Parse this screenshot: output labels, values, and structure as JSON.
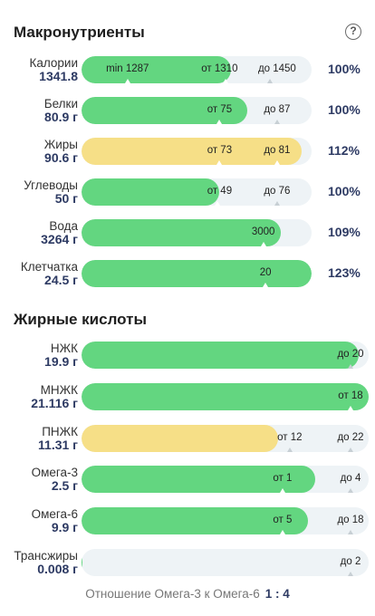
{
  "macros": {
    "title": "Макронутриенты",
    "help_icon": "question-circle-icon",
    "rows": [
      {
        "name": "Калории",
        "amount": "1341.8",
        "fill": 0.65,
        "color": "green",
        "marks": [
          {
            "text": "min 1287",
            "pos": 0.2,
            "tick": 0.2
          },
          {
            "text": "от 1310",
            "pos": 0.6,
            "tick": 0.625
          },
          {
            "text": "до 1450",
            "pos": 0.85,
            "tick": 0.82
          }
        ],
        "pct": "100%"
      },
      {
        "name": "Белки",
        "amount": "80.9 г",
        "fill": 0.72,
        "color": "green",
        "marks": [
          {
            "text": "от 75",
            "pos": 0.6,
            "tick": 0.6
          },
          {
            "text": "до 87",
            "pos": 0.85,
            "tick": 0.85
          }
        ],
        "pct": "100%"
      },
      {
        "name": "Жиры",
        "amount": "90.6 г",
        "fill": 0.955,
        "color": "yellow",
        "marks": [
          {
            "text": "от 73",
            "pos": 0.6,
            "tick": 0.6
          },
          {
            "text": "до 81",
            "pos": 0.85,
            "tick": 0.85
          }
        ],
        "pct": "112%"
      },
      {
        "name": "Углеводы",
        "amount": "50 г",
        "fill": 0.6,
        "color": "green",
        "marks": [
          {
            "text": "от 49",
            "pos": 0.6,
            "tick": 0.59
          },
          {
            "text": "до 76",
            "pos": 0.85,
            "tick": 0.85
          }
        ],
        "pct": "100%"
      },
      {
        "name": "Вода",
        "amount": "3264 г",
        "fill": 0.865,
        "color": "green",
        "marks": [
          {
            "text": "3000",
            "pos": 0.79,
            "tick": 0.79
          }
        ],
        "pct": "109%"
      },
      {
        "name": "Клетчатка",
        "amount": "24.5 г",
        "fill": 1.0,
        "color": "green",
        "marks": [
          {
            "text": "20",
            "pos": 0.8,
            "tick": 0.8
          }
        ],
        "pct": "123%"
      }
    ]
  },
  "fatty": {
    "title": "Жирные кислоты",
    "rows": [
      {
        "name": "НЖК",
        "amount": "19.9 г",
        "fill": 0.965,
        "color": "green",
        "marks": [
          {
            "text": "до 20",
            "pos": 0.97,
            "tick": 0.97
          }
        ]
      },
      {
        "name": "МНЖК",
        "amount": "21.116 г",
        "fill": 1.136,
        "color": "green",
        "marks": [
          {
            "text": "от 18",
            "pos": 0.97,
            "tick": 0.97
          }
        ]
      },
      {
        "name": "ПНЖК",
        "amount": "11.31 г",
        "fill": 0.685,
        "color": "yellow",
        "marks": [
          {
            "text": "от 12",
            "pos": 0.725,
            "tick": 0.725
          },
          {
            "text": "до 22",
            "pos": 1.03,
            "tick": 1.03
          }
        ]
      },
      {
        "name": "Омега-3",
        "amount": "2.5 г",
        "fill": 0.815,
        "color": "green",
        "marks": [
          {
            "text": "от 1",
            "pos": 0.7,
            "tick": 0.7
          },
          {
            "text": "до 4",
            "pos": 1.0,
            "tick": 1.0
          }
        ]
      },
      {
        "name": "Омега-6",
        "amount": "9.9 г",
        "fill": 0.79,
        "color": "green",
        "marks": [
          {
            "text": "от 5",
            "pos": 0.7,
            "tick": 0.7
          },
          {
            "text": "до 18",
            "pos": 1.0,
            "tick": 1.0
          }
        ]
      },
      {
        "name": "Трансжиры",
        "amount": "0.008 г",
        "fill": 0.003,
        "color": "green",
        "marks": [
          {
            "text": "до 2",
            "pos": 1.0,
            "tick": 1.0
          }
        ]
      }
    ]
  },
  "footer": {
    "label": "Отношение Омега-3 к Омега-6",
    "ratio": "1 : 4"
  },
  "colors": {
    "green": "#63d680",
    "yellow": "#f6df87",
    "track": "#eef3f6",
    "accent": "#2d3a63"
  }
}
